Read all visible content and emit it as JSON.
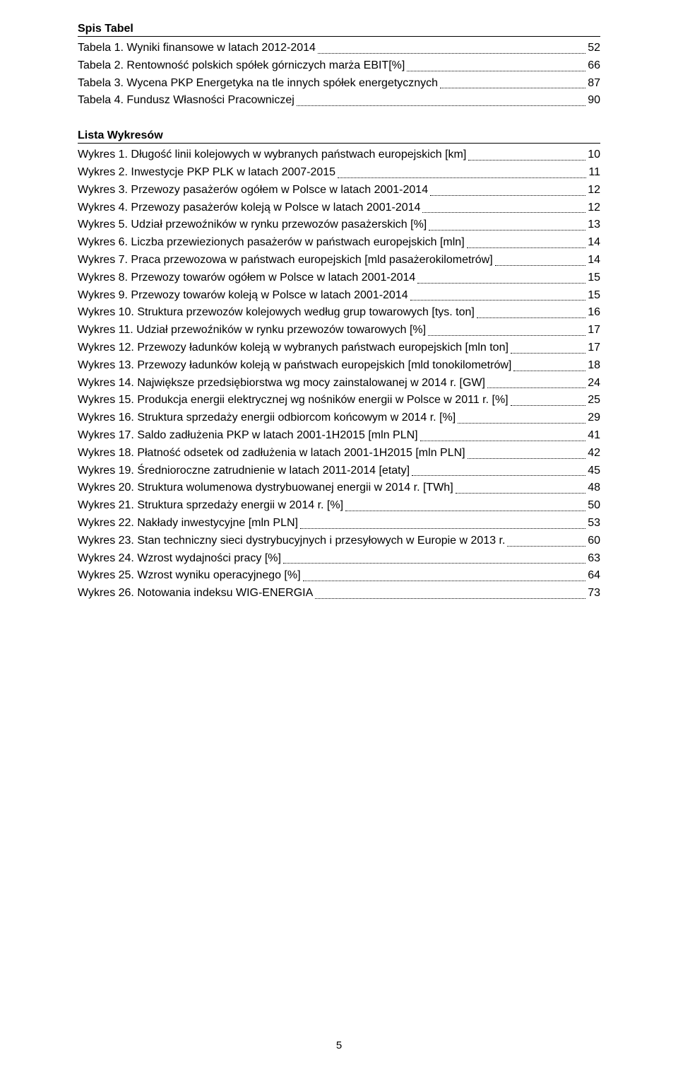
{
  "headings": {
    "tables": "Spis Tabel",
    "figures": "Lista Wykresów"
  },
  "tables": [
    {
      "label": "Tabela 1. Wyniki finansowe w latach 2012-2014",
      "page": "52"
    },
    {
      "label": "Tabela 2. Rentowność polskich spółek górniczych marża EBIT[%]",
      "page": "66"
    },
    {
      "label": "Tabela 3. Wycena PKP Energetyka na tle innych spółek energetycznych",
      "page": "87"
    },
    {
      "label": "Tabela 4. Fundusz Własności Pracowniczej",
      "page": "90"
    }
  ],
  "figures": [
    {
      "label": "Wykres 1. Długość linii kolejowych w wybranych państwach europejskich [km]",
      "page": "10"
    },
    {
      "label": "Wykres 2. Inwestycje PKP PLK w latach 2007-2015",
      "page": "11"
    },
    {
      "label": "Wykres 3. Przewozy pasażerów ogółem w Polsce w latach 2001-2014",
      "page": "12"
    },
    {
      "label": "Wykres 4. Przewozy pasażerów koleją w Polsce w latach 2001-2014",
      "page": "12"
    },
    {
      "label": "Wykres 5. Udział przewoźników w rynku przewozów pasażerskich [%]",
      "page": "13"
    },
    {
      "label": "Wykres 6. Liczba przewiezionych pasażerów w państwach europejskich [mln]",
      "page": "14"
    },
    {
      "label": "Wykres 7. Praca przewozowa w państwach europejskich [mld pasażerokilometrów]",
      "page": "14"
    },
    {
      "label": "Wykres 8. Przewozy towarów ogółem w Polsce w latach 2001-2014",
      "page": "15"
    },
    {
      "label": "Wykres 9. Przewozy towarów koleją w Polsce w latach 2001-2014",
      "page": "15"
    },
    {
      "label": "Wykres 10. Struktura przewozów kolejowych według grup towarowych [tys. ton]",
      "page": "16"
    },
    {
      "label": "Wykres 11. Udział przewoźników w rynku przewozów towarowych [%]",
      "page": "17"
    },
    {
      "label": "Wykres 12. Przewozy ładunków koleją w wybranych państwach europejskich [mln ton]",
      "page": "17"
    },
    {
      "label": "Wykres 13. Przewozy ładunków koleją w państwach europejskich [mld tonokilometrów]",
      "page": "18"
    },
    {
      "label": "Wykres 14. Największe przedsiębiorstwa wg mocy zainstalowanej w 2014 r. [GW]",
      "page": "24"
    },
    {
      "label": "Wykres 15. Produkcja energii elektrycznej wg nośników energii w Polsce w 2011 r. [%]",
      "page": "25"
    },
    {
      "label": "Wykres 16. Struktura sprzedaży energii odbiorcom końcowym w 2014 r. [%]",
      "page": "29"
    },
    {
      "label": "Wykres 17. Saldo zadłużenia PKP w latach 2001-1H2015 [mln PLN]",
      "page": "41"
    },
    {
      "label": "Wykres 18. Płatność odsetek od zadłużenia w latach 2001-1H2015 [mln PLN]",
      "page": "42"
    },
    {
      "label": "Wykres 19. Średnioroczne zatrudnienie w latach 2011-2014 [etaty]",
      "page": "45"
    },
    {
      "label": "Wykres 20. Struktura wolumenowa dystrybuowanej energii w 2014 r. [TWh]",
      "page": "48"
    },
    {
      "label": "Wykres 21. Struktura sprzedaży energii w 2014 r. [%]",
      "page": "50"
    },
    {
      "label": "Wykres 22. Nakłady inwestycyjne [mln PLN]",
      "page": "53"
    },
    {
      "label": "Wykres 23. Stan techniczny sieci dystrybucyjnych i przesyłowych w Europie w 2013 r.",
      "page": "60"
    },
    {
      "label": "Wykres 24. Wzrost wydajności pracy [%]",
      "page": "63"
    },
    {
      "label": "Wykres 25. Wzrost wyniku operacyjnego [%]",
      "page": "64"
    },
    {
      "label": "Wykres 26. Notowania indeksu WIG-ENERGIA",
      "page": "73"
    }
  ],
  "footer_page_number": "5"
}
